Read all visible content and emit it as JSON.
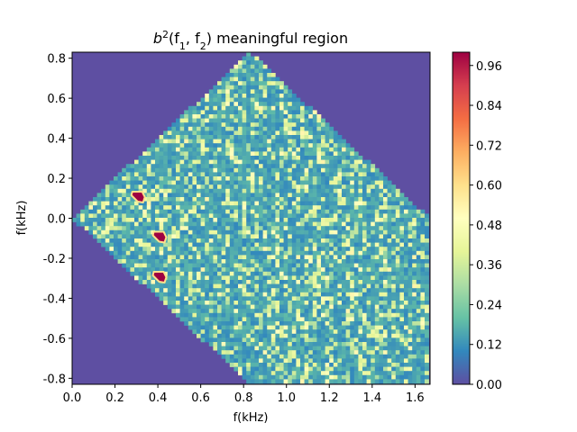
{
  "chart_data": {
    "type": "heatmap",
    "title_prefix": "b",
    "title_sup": "2",
    "title_open": "(f",
    "title_sub1": "1",
    "title_mid": ", f",
    "title_sub2": "2",
    "title_close": ") meaningful region",
    "xlabel": "f(kHz)",
    "ylabel": "f(kHz)",
    "xlim": [
      0.0,
      1.67
    ],
    "ylim": [
      -0.83,
      0.83
    ],
    "xticks": [
      "0.0",
      "0.2",
      "0.4",
      "0.6",
      "0.8",
      "1.0",
      "1.2",
      "1.4",
      "1.6"
    ],
    "yticks": [
      "-0.8",
      "-0.6",
      "-0.4",
      "-0.2",
      "0.0",
      "0.2",
      "0.4",
      "0.6",
      "0.8"
    ],
    "colorbar": {
      "range": [
        0.0,
        1.0
      ],
      "ticks": [
        "0.00",
        "0.12",
        "0.24",
        "0.36",
        "0.48",
        "0.60",
        "0.72",
        "0.84",
        "0.96"
      ],
      "colormap": "Spectral_r",
      "colors": [
        "#5e4fa2",
        "#3288bd",
        "#66c2a5",
        "#abdda4",
        "#e6f598",
        "#ffffbf",
        "#fee08b",
        "#fdae61",
        "#f46d43",
        "#d53e4f",
        "#9e0142"
      ]
    },
    "background_value": 0.0,
    "region_vertices_khz": [
      [
        0.0,
        0.0
      ],
      [
        0.83,
        0.83
      ],
      [
        1.67,
        0.0
      ],
      [
        1.67,
        -0.83
      ],
      [
        0.83,
        -0.83
      ]
    ],
    "hotspots": [
      {
        "x": 0.31,
        "y": 0.11,
        "value": 1.0
      },
      {
        "x": 0.41,
        "y": -0.09,
        "value": 1.0
      },
      {
        "x": 0.41,
        "y": -0.29,
        "value": 1.0
      }
    ]
  }
}
